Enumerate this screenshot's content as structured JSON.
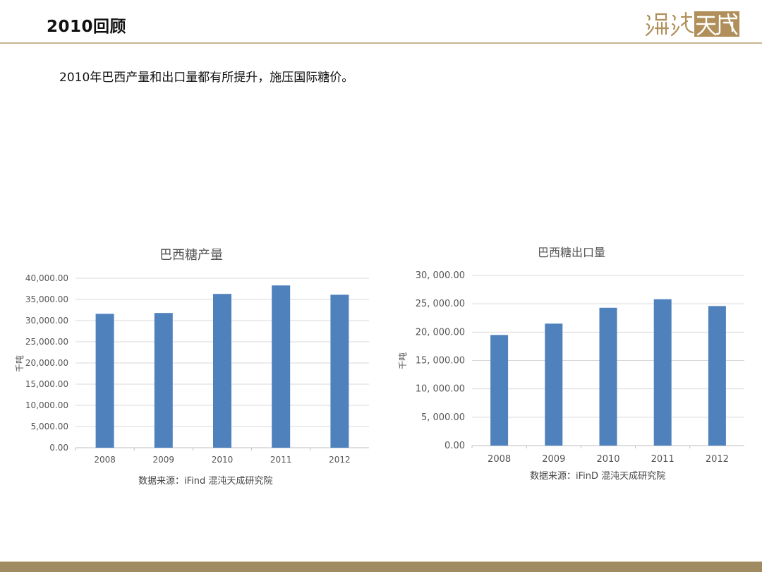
{
  "header": {
    "title": "2010回顾"
  },
  "logo": {
    "text": "混沌天成"
  },
  "subtitle": "2010年巴西产量和出口量都有所提升，施压国际糖价。",
  "colors": {
    "bar": "#4f81bd",
    "grid": "#d9d9d9",
    "gold": "#b08f5a"
  },
  "chart_data": [
    {
      "type": "bar",
      "title": "巴西糖产量",
      "ylabel": "千吨",
      "xlabel": "",
      "categories": [
        "2008",
        "2009",
        "2010",
        "2011",
        "2012"
      ],
      "values": [
        31600,
        31800,
        36300,
        38300,
        36100
      ],
      "ylim": [
        0,
        40000
      ],
      "yticks": [
        "0.00",
        "5,000.00",
        "10,000.00",
        "15,000.00",
        "20,000.00",
        "25,000.00",
        "30,000.00",
        "35,000.00",
        "40,000.00"
      ],
      "grid": true,
      "source": "数据来源：iFind  混沌天成研究院"
    },
    {
      "type": "bar",
      "title": "巴西糖出口量",
      "ylabel": "千吨",
      "xlabel": "",
      "categories": [
        "2008",
        "2009",
        "2010",
        "2011",
        "2012"
      ],
      "values": [
        19500,
        21500,
        24300,
        25800,
        24600
      ],
      "ylim": [
        0,
        30000
      ],
      "yticks": [
        "0.00",
        "5, 000.00",
        "10, 000.00",
        "15, 000.00",
        "20, 000.00",
        "25, 000.00",
        "30, 000.00"
      ],
      "grid": true,
      "source": "数据来源：iFinD 混沌天成研究院"
    }
  ]
}
